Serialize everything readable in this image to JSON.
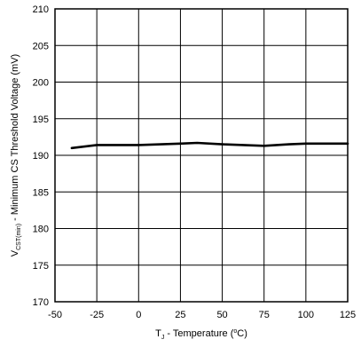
{
  "chart_data": {
    "type": "line",
    "xlabel": {
      "prefix": "T",
      "sub": "J",
      "rest": " - Temperature (",
      "sup": "o",
      "end": "C)"
    },
    "ylabel": {
      "prefix": "V",
      "sub": "CST(min)",
      "rest": " - Minimum CS Threshold Voltage (mV)"
    },
    "xlim": [
      -50,
      125
    ],
    "ylim": [
      170,
      210
    ],
    "x_ticks": [
      -50,
      -25,
      0,
      25,
      50,
      75,
      100,
      125
    ],
    "y_ticks": [
      170,
      175,
      180,
      185,
      190,
      195,
      200,
      205,
      210
    ],
    "grid": true,
    "series": [
      {
        "x": [
          -40,
          -25,
          0,
          25,
          35,
          50,
          75,
          90,
          100,
          125
        ],
        "y": [
          191.0,
          191.4,
          191.4,
          191.6,
          191.7,
          191.5,
          191.3,
          191.5,
          191.6,
          191.6
        ],
        "color": "#000000"
      }
    ]
  }
}
